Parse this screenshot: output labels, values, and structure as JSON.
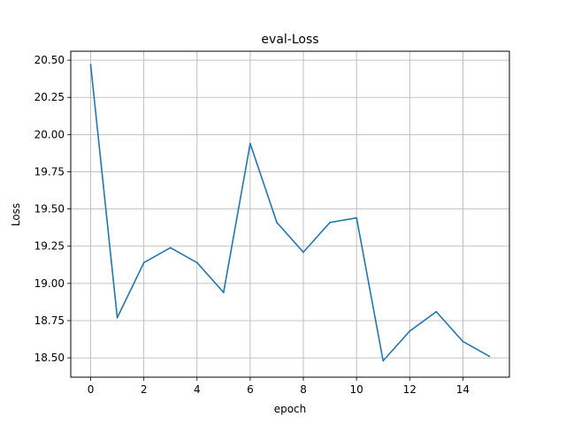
{
  "chart_data": {
    "type": "line",
    "title": "eval-Loss",
    "xlabel": "epoch",
    "ylabel": "Loss",
    "xlim": [
      -0.75,
      15.75
    ],
    "ylim": [
      18.37,
      20.56
    ],
    "grid": true,
    "x_ticks": [
      0,
      2,
      4,
      6,
      8,
      10,
      12,
      14
    ],
    "x_tick_labels": [
      "0",
      "2",
      "4",
      "6",
      "8",
      "10",
      "12",
      "14"
    ],
    "y_ticks": [
      18.5,
      18.75,
      19.0,
      19.25,
      19.5,
      19.75,
      20.0,
      20.25,
      20.5
    ],
    "y_tick_labels": [
      "18.50",
      "18.75",
      "19.00",
      "19.25",
      "19.50",
      "19.75",
      "20.00",
      "20.25",
      "20.50"
    ],
    "series": [
      {
        "name": "eval-Loss",
        "color": "#1f77b4",
        "x": [
          0,
          1,
          2,
          3,
          4,
          5,
          6,
          7,
          8,
          9,
          10,
          11,
          12,
          13,
          14,
          15
        ],
        "values": [
          20.47,
          18.77,
          19.14,
          19.24,
          19.14,
          18.94,
          19.94,
          19.41,
          19.21,
          19.41,
          19.44,
          18.48,
          18.68,
          18.81,
          18.61,
          18.51
        ]
      }
    ]
  }
}
